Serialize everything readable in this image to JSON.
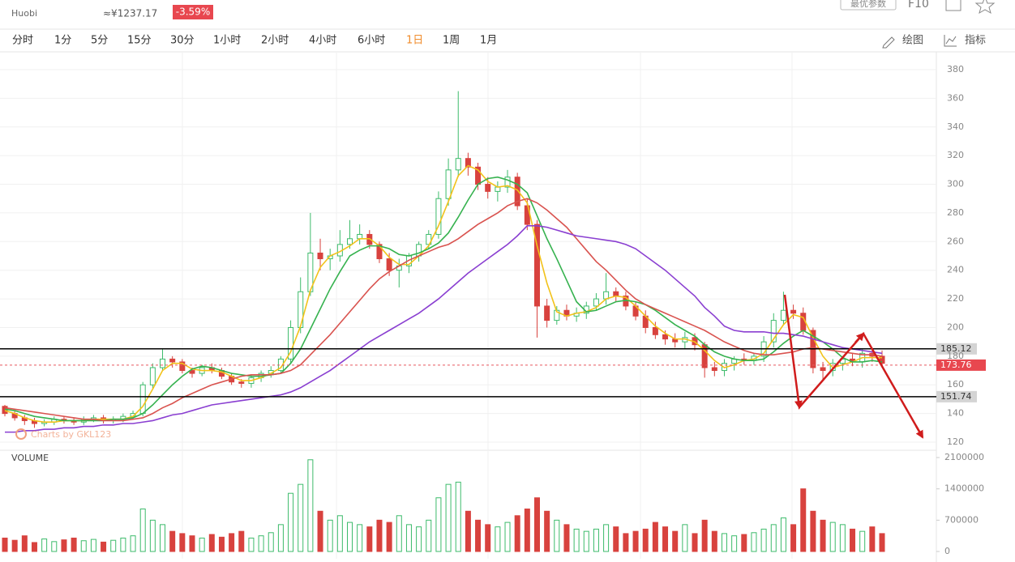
{
  "header": {
    "exchange": "Huobi",
    "cny_price": "≈¥1237.17",
    "change": "-3.59%",
    "button": "最优参数",
    "f10": "F10"
  },
  "toolbar": {
    "tabs": [
      "分时",
      "1分",
      "5分",
      "15分",
      "30分",
      "1小时",
      "2小时",
      "4小时",
      "6小时",
      "1日",
      "1周",
      "1月"
    ],
    "active_tab": 9,
    "active_color": "#f08c2c",
    "draw": "绘图",
    "indicator": "指标"
  },
  "chart_data": {
    "type": "candlestick",
    "watermark": "Charts by GKL123",
    "volume_label": "VOLUME",
    "up_color": "#3dbb6b",
    "down_color": "#d8423e",
    "ylim": [
      120,
      380
    ],
    "yticks": [
      120,
      140,
      160,
      180,
      200,
      220,
      240,
      260,
      280,
      300,
      320,
      340,
      360,
      380
    ],
    "grid": true,
    "volume_ylim": [
      0,
      2100000
    ],
    "volume_yticks": [
      0,
      700000,
      1400000,
      2100000
    ],
    "levels": [
      {
        "value": 185.12,
        "color": "#000000",
        "tag": "#d4d4d4",
        "text_color": "#333333",
        "dashed": false
      },
      {
        "value": 173.76,
        "color": "#e8575f",
        "tag": "#e8474f",
        "text_color": "#ffffff",
        "dashed": true
      },
      {
        "value": 151.74,
        "color": "#000000",
        "tag": "#d4d4d4",
        "text_color": "#333333",
        "dashed": false
      }
    ],
    "open": [
      145,
      140,
      137,
      135,
      133,
      134,
      136,
      135,
      134,
      136,
      137,
      135,
      136,
      138,
      140,
      160,
      172,
      178,
      176,
      170,
      168,
      172,
      170,
      166,
      162,
      161,
      165,
      168,
      170,
      178,
      200,
      225,
      252,
      248,
      250,
      258,
      262,
      265,
      258,
      248,
      240,
      243,
      250,
      258,
      265,
      290,
      310,
      318,
      312,
      300,
      295,
      298,
      305,
      285,
      272,
      215,
      205,
      212,
      208,
      210,
      215,
      220,
      225,
      222,
      215,
      208,
      200,
      195,
      192,
      190,
      193,
      188,
      172,
      170,
      175,
      178,
      177,
      180,
      190,
      205,
      212,
      210,
      198,
      172,
      170,
      175,
      178,
      176,
      182,
      180
    ],
    "high": [
      146,
      142,
      139,
      137,
      136,
      138,
      138,
      137,
      138,
      139,
      139,
      138,
      140,
      142,
      162,
      175,
      185,
      180,
      178,
      172,
      174,
      175,
      172,
      168,
      164,
      167,
      170,
      173,
      180,
      205,
      235,
      280,
      262,
      255,
      268,
      275,
      272,
      268,
      260,
      252,
      248,
      252,
      260,
      268,
      295,
      318,
      365,
      322,
      315,
      305,
      302,
      310,
      308,
      290,
      275,
      220,
      215,
      216,
      214,
      218,
      224,
      238,
      228,
      225,
      218,
      212,
      204,
      198,
      196,
      197,
      196,
      190,
      176,
      178,
      180,
      182,
      182,
      194,
      210,
      225,
      216,
      214,
      200,
      176,
      178,
      180,
      182,
      185,
      186,
      184
    ],
    "low": [
      138,
      135,
      132,
      130,
      131,
      132,
      133,
      132,
      132,
      134,
      133,
      133,
      134,
      136,
      138,
      157,
      170,
      172,
      168,
      165,
      166,
      168,
      164,
      160,
      158,
      158,
      162,
      165,
      168,
      175,
      196,
      222,
      240,
      240,
      246,
      255,
      258,
      255,
      245,
      236,
      228,
      238,
      246,
      255,
      262,
      285,
      305,
      306,
      296,
      290,
      288,
      294,
      282,
      268,
      193,
      200,
      202,
      205,
      204,
      206,
      212,
      216,
      218,
      212,
      205,
      196,
      192,
      188,
      186,
      185,
      184,
      165,
      166,
      166,
      170,
      174,
      174,
      176,
      186,
      202,
      206,
      195,
      168,
      163,
      166,
      170,
      173,
      172,
      176,
      172
    ],
    "close": [
      140,
      137,
      135,
      133,
      134,
      136,
      135,
      134,
      136,
      137,
      135,
      136,
      138,
      140,
      160,
      172,
      178,
      176,
      170,
      168,
      172,
      170,
      166,
      162,
      161,
      165,
      168,
      170,
      178,
      200,
      225,
      252,
      248,
      250,
      258,
      262,
      265,
      258,
      248,
      240,
      243,
      250,
      258,
      265,
      290,
      310,
      318,
      312,
      300,
      295,
      298,
      305,
      285,
      272,
      215,
      205,
      212,
      208,
      210,
      215,
      220,
      225,
      222,
      215,
      208,
      200,
      195,
      192,
      190,
      193,
      188,
      172,
      170,
      175,
      178,
      177,
      180,
      190,
      205,
      212,
      210,
      198,
      172,
      170,
      175,
      178,
      176,
      182,
      180,
      175
    ],
    "volume": [
      300000,
      250000,
      350000,
      200000,
      280000,
      220000,
      260000,
      300000,
      240000,
      270000,
      210000,
      250000,
      300000,
      350000,
      950000,
      700000,
      600000,
      450000,
      400000,
      350000,
      300000,
      380000,
      320000,
      400000,
      450000,
      300000,
      350000,
      420000,
      600000,
      1300000,
      1500000,
      2050000,
      900000,
      700000,
      800000,
      650000,
      600000,
      550000,
      700000,
      650000,
      800000,
      600000,
      550000,
      700000,
      1200000,
      1500000,
      1550000,
      900000,
      700000,
      600000,
      550000,
      650000,
      800000,
      950000,
      1200000,
      900000,
      700000,
      600000,
      500000,
      450000,
      500000,
      600000,
      550000,
      400000,
      450000,
      500000,
      650000,
      550000,
      450000,
      600000,
      400000,
      700000,
      450000,
      400000,
      350000,
      380000,
      420000,
      500000,
      600000,
      750000,
      600000,
      1400000,
      900000,
      700000,
      650000,
      600000,
      500000,
      450000,
      550000,
      400000
    ],
    "series": [
      {
        "color": "#f2c21a",
        "values": [
          142,
          140,
          137,
          135,
          134,
          134,
          135,
          135,
          135,
          136,
          136,
          136,
          136,
          138,
          145,
          157,
          170,
          175,
          175,
          171,
          170,
          170,
          169,
          166,
          163,
          163,
          165,
          168,
          172,
          183,
          201,
          226,
          242,
          250,
          253,
          257,
          262,
          262,
          257,
          249,
          244,
          244,
          250,
          257,
          271,
          288,
          306,
          313,
          310,
          302,
          298,
          299,
          296,
          287,
          257,
          231,
          211,
          208,
          210,
          211,
          214,
          220,
          222,
          221,
          215,
          208,
          201,
          196,
          192,
          192,
          190,
          184,
          177,
          172,
          174,
          177,
          178,
          182,
          192,
          202,
          209,
          207,
          193,
          180,
          172,
          174,
          176,
          179,
          179,
          179
        ]
      },
      {
        "color": "#36b24f",
        "values": [
          143,
          142,
          140,
          138,
          137,
          136,
          135,
          135,
          135,
          135,
          135,
          136,
          136,
          137,
          140,
          146,
          153,
          160,
          166,
          171,
          173,
          172,
          170,
          168,
          167,
          166,
          166,
          167,
          168,
          175,
          185,
          199,
          213,
          227,
          239,
          250,
          254,
          257,
          257,
          255,
          251,
          250,
          252,
          255,
          259,
          266,
          277,
          289,
          300,
          304,
          305,
          303,
          300,
          294,
          278,
          262,
          248,
          233,
          218,
          211,
          212,
          215,
          218,
          219,
          218,
          216,
          212,
          207,
          202,
          198,
          194,
          188,
          183,
          180,
          178,
          177,
          177,
          178,
          183,
          189,
          194,
          198,
          194,
          190,
          185,
          179,
          176,
          176,
          177,
          176
        ]
      },
      {
        "color": "#d9534f",
        "values": [
          144,
          143,
          142,
          141,
          140,
          139,
          138,
          137,
          136,
          136,
          135,
          135,
          135,
          136,
          137,
          140,
          144,
          147,
          151,
          154,
          157,
          160,
          162,
          164,
          166,
          167,
          167,
          167,
          168,
          170,
          174,
          181,
          188,
          195,
          203,
          211,
          219,
          227,
          234,
          239,
          243,
          247,
          250,
          253,
          256,
          258,
          262,
          267,
          272,
          276,
          280,
          285,
          288,
          290,
          287,
          282,
          276,
          270,
          262,
          254,
          246,
          240,
          233,
          226,
          220,
          216,
          213,
          210,
          207,
          204,
          201,
          198,
          194,
          190,
          187,
          184,
          182,
          181,
          181,
          182,
          183,
          185,
          186,
          185,
          184,
          183,
          182,
          181,
          181,
          180
        ]
      },
      {
        "color": "#8a3fd1",
        "values": [
          127,
          127,
          128,
          128,
          129,
          129,
          130,
          130,
          131,
          131,
          132,
          132,
          133,
          133,
          134,
          135,
          137,
          139,
          140,
          142,
          144,
          146,
          147,
          148,
          149,
          150,
          151,
          152,
          153,
          155,
          158,
          162,
          166,
          170,
          175,
          180,
          185,
          190,
          194,
          198,
          202,
          206,
          210,
          215,
          220,
          226,
          232,
          238,
          243,
          248,
          253,
          258,
          264,
          271,
          271,
          270,
          268,
          266,
          264,
          263,
          262,
          261,
          260,
          258,
          255,
          250,
          245,
          240,
          234,
          228,
          222,
          214,
          208,
          201,
          198,
          197,
          197,
          197,
          196,
          196,
          195,
          194,
          192,
          190,
          188,
          186,
          185,
          184,
          183,
          182
        ]
      }
    ]
  }
}
